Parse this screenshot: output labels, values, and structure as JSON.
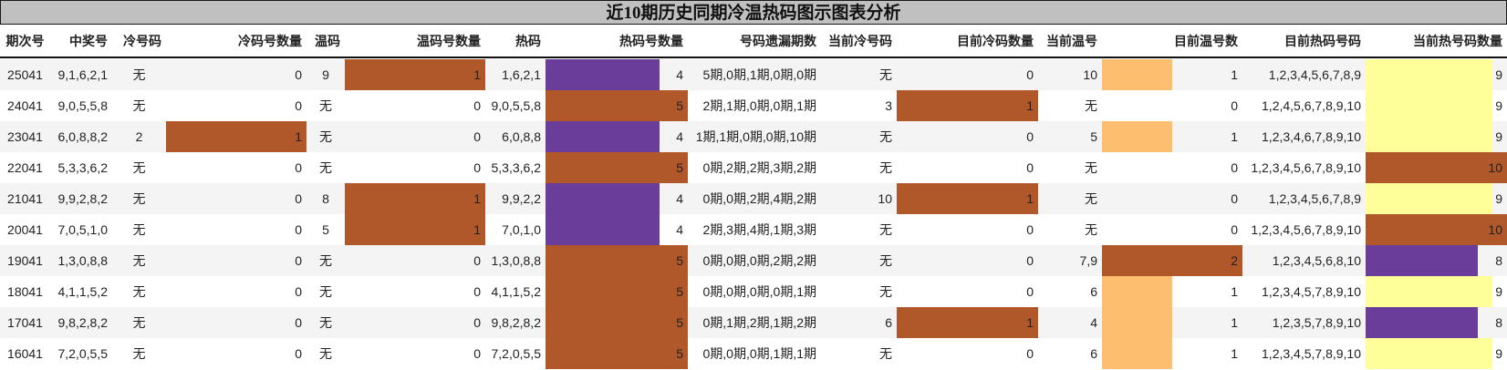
{
  "title": "近10期历史同期冷温热码图示图表分析",
  "colors": {
    "title_bg": "#c0c0c0",
    "rust": "#b0582a",
    "purple": "#6a3d9a",
    "light_orange": "#fdbf6f",
    "light_yellow": "#ffff99",
    "row_alt": "#f4f4f4"
  },
  "columns": [
    {
      "key": "period",
      "label": "期次号"
    },
    {
      "key": "winning",
      "label": "中奖号"
    },
    {
      "key": "cold",
      "label": "冷号码"
    },
    {
      "key": "cold_count",
      "label": "冷码号数量"
    },
    {
      "key": "warm",
      "label": "温码"
    },
    {
      "key": "warm_count",
      "label": "温码号数量"
    },
    {
      "key": "hot",
      "label": "热码"
    },
    {
      "key": "hot_count",
      "label": "热码号数量"
    },
    {
      "key": "miss",
      "label": "号码遗漏期数"
    },
    {
      "key": "cur_cold",
      "label": "当前冷号码"
    },
    {
      "key": "cur_cold_count",
      "label": "目前冷码数量"
    },
    {
      "key": "cur_warm",
      "label": "当前温号"
    },
    {
      "key": "cur_warm_count",
      "label": "目前温号数"
    },
    {
      "key": "cur_hot",
      "label": "目前热码号码"
    },
    {
      "key": "cur_hot_count",
      "label": "当前热号码数量"
    }
  ],
  "rows": [
    {
      "period": "25041",
      "winning": "9,1,6,2,1",
      "cold": "无",
      "cold_count": "0",
      "warm": "9",
      "warm_count": "1",
      "hot": "1,6,2,1",
      "hot_count": "4",
      "miss": "5期,0期,1期,0期,0期",
      "cur_cold": "无",
      "cur_cold_count": "0",
      "cur_warm": "10",
      "cur_warm_count": "1",
      "cur_hot": "1,2,3,4,5,6,7,8,9",
      "cur_hot_count": "9"
    },
    {
      "period": "24041",
      "winning": "9,0,5,5,8",
      "cold": "无",
      "cold_count": "0",
      "warm": "无",
      "warm_count": "0",
      "hot": "9,0,5,5,8",
      "hot_count": "5",
      "miss": "2期,1期,0期,0期,1期",
      "cur_cold": "3",
      "cur_cold_count": "1",
      "cur_warm": "无",
      "cur_warm_count": "0",
      "cur_hot": "1,2,4,5,6,7,8,9,10",
      "cur_hot_count": "9"
    },
    {
      "period": "23041",
      "winning": "6,0,8,8,2",
      "cold": "2",
      "cold_count": "1",
      "warm": "无",
      "warm_count": "0",
      "hot": "6,0,8,8",
      "hot_count": "4",
      "miss": "1期,1期,0期,0期,10期",
      "cur_cold": "无",
      "cur_cold_count": "0",
      "cur_warm": "5",
      "cur_warm_count": "1",
      "cur_hot": "1,2,3,4,6,7,8,9,10",
      "cur_hot_count": "9"
    },
    {
      "period": "22041",
      "winning": "5,3,3,6,2",
      "cold": "无",
      "cold_count": "0",
      "warm": "无",
      "warm_count": "0",
      "hot": "5,3,3,6,2",
      "hot_count": "5",
      "miss": "0期,2期,2期,3期,2期",
      "cur_cold": "无",
      "cur_cold_count": "0",
      "cur_warm": "无",
      "cur_warm_count": "0",
      "cur_hot": "1,2,3,4,5,6,7,8,9,10",
      "cur_hot_count": "10"
    },
    {
      "period": "21041",
      "winning": "9,9,2,8,2",
      "cold": "无",
      "cold_count": "0",
      "warm": "8",
      "warm_count": "1",
      "hot": "9,9,2,2",
      "hot_count": "4",
      "miss": "0期,0期,2期,4期,2期",
      "cur_cold": "10",
      "cur_cold_count": "1",
      "cur_warm": "无",
      "cur_warm_count": "0",
      "cur_hot": "1,2,3,4,5,6,7,8,9",
      "cur_hot_count": "9"
    },
    {
      "period": "20041",
      "winning": "7,0,5,1,0",
      "cold": "无",
      "cold_count": "0",
      "warm": "5",
      "warm_count": "1",
      "hot": "7,0,1,0",
      "hot_count": "4",
      "miss": "2期,3期,4期,1期,3期",
      "cur_cold": "无",
      "cur_cold_count": "0",
      "cur_warm": "无",
      "cur_warm_count": "0",
      "cur_hot": "1,2,3,4,5,6,7,8,9,10",
      "cur_hot_count": "10"
    },
    {
      "period": "19041",
      "winning": "1,3,0,8,8",
      "cold": "无",
      "cold_count": "0",
      "warm": "无",
      "warm_count": "0",
      "hot": "1,3,0,8,8",
      "hot_count": "5",
      "miss": "0期,0期,0期,2期,2期",
      "cur_cold": "无",
      "cur_cold_count": "0",
      "cur_warm": "7,9",
      "cur_warm_count": "2",
      "cur_hot": "1,2,3,4,5,6,8,10",
      "cur_hot_count": "8"
    },
    {
      "period": "18041",
      "winning": "4,1,1,5,2",
      "cold": "无",
      "cold_count": "0",
      "warm": "无",
      "warm_count": "0",
      "hot": "4,1,1,5,2",
      "hot_count": "5",
      "miss": "0期,0期,0期,0期,1期",
      "cur_cold": "无",
      "cur_cold_count": "0",
      "cur_warm": "6",
      "cur_warm_count": "1",
      "cur_hot": "1,2,3,4,5,7,8,9,10",
      "cur_hot_count": "9"
    },
    {
      "period": "17041",
      "winning": "9,8,2,8,2",
      "cold": "无",
      "cold_count": "0",
      "warm": "无",
      "warm_count": "0",
      "hot": "9,8,2,8,2",
      "hot_count": "5",
      "miss": "0期,1期,2期,1期,2期",
      "cur_cold": "6",
      "cur_cold_count": "1",
      "cur_warm": "4",
      "cur_warm_count": "1",
      "cur_hot": "1,2,3,5,7,8,9,10",
      "cur_hot_count": "8"
    },
    {
      "period": "16041",
      "winning": "7,2,0,5,5",
      "cold": "无",
      "cold_count": "0",
      "warm": "无",
      "warm_count": "0",
      "hot": "7,2,0,5,5",
      "hot_count": "5",
      "miss": "0期,0期,0期,1期,1期",
      "cur_cold": "无",
      "cur_cold_count": "0",
      "cur_warm": "6",
      "cur_warm_count": "1",
      "cur_hot": "1,2,3,4,5,7,8,9,10",
      "cur_hot_count": "9"
    }
  ],
  "chart_data": {
    "type": "table",
    "title": "近10期历史同期冷温热码图示图表分析",
    "categories": [
      "25041",
      "24041",
      "23041",
      "22041",
      "21041",
      "20041",
      "19041",
      "18041",
      "17041",
      "16041"
    ],
    "series": [
      {
        "name": "冷码号数量",
        "values": [
          0,
          0,
          1,
          0,
          0,
          0,
          0,
          0,
          0,
          0
        ]
      },
      {
        "name": "温码号数量",
        "values": [
          1,
          0,
          0,
          0,
          1,
          1,
          0,
          0,
          0,
          0
        ]
      },
      {
        "name": "热码号数量",
        "values": [
          4,
          5,
          4,
          5,
          4,
          4,
          5,
          5,
          5,
          5
        ]
      },
      {
        "name": "目前冷码数量",
        "values": [
          0,
          1,
          0,
          0,
          1,
          0,
          0,
          0,
          1,
          0
        ]
      },
      {
        "name": "目前温号数",
        "values": [
          1,
          0,
          1,
          0,
          0,
          0,
          2,
          1,
          1,
          1
        ]
      },
      {
        "name": "当前热号码数量",
        "values": [
          9,
          9,
          9,
          10,
          9,
          10,
          8,
          9,
          8,
          9
        ]
      }
    ],
    "bar_columns_max": {
      "冷码号数量": 1,
      "温码号数量": 1,
      "热码号数量": 5,
      "目前冷码数量": 1,
      "目前温号数": 2,
      "当前热号码数量": 10
    },
    "legend": "none",
    "grid": false
  }
}
